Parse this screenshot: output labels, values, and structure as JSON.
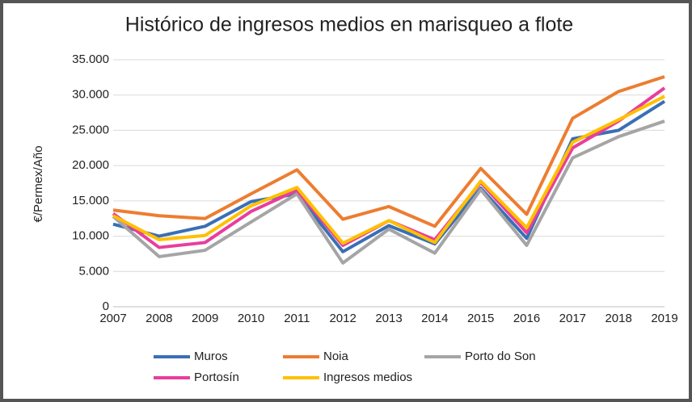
{
  "chart_data": {
    "type": "line",
    "title": "Histórico de ingresos medios en marisqueo a flote",
    "y_label": "€/Permex/Año",
    "categories": [
      "2007",
      "2008",
      "2009",
      "2010",
      "2011",
      "2012",
      "2013",
      "2014",
      "2015",
      "2016",
      "2017",
      "2018",
      "2019"
    ],
    "series": [
      {
        "name": "Muros",
        "color": "#3a6fb5",
        "values": [
          11700,
          10000,
          11400,
          14900,
          16000,
          7800,
          11500,
          8900,
          16800,
          9700,
          23800,
          25000,
          29100
        ]
      },
      {
        "name": "Noia",
        "color": "#ed7d31",
        "values": [
          13700,
          12900,
          12500,
          16000,
          19400,
          12400,
          14200,
          11400,
          19600,
          13100,
          26700,
          30500,
          32600
        ]
      },
      {
        "name": "Porto do Son",
        "color": "#a5a5a5",
        "values": [
          12800,
          7100,
          8000,
          12000,
          16000,
          6200,
          11000,
          7600,
          16600,
          8700,
          21100,
          24100,
          26300
        ]
      },
      {
        "name": "Portosín",
        "color": "#e83e9c",
        "values": [
          13200,
          8400,
          9100,
          13500,
          16500,
          8700,
          12200,
          9500,
          17600,
          10500,
          22500,
          26300,
          31000
        ]
      },
      {
        "name": "Ingresos medios",
        "color": "#ffc000",
        "values": [
          12900,
          9500,
          10100,
          14300,
          16900,
          9000,
          12200,
          9100,
          17800,
          11200,
          23300,
          26500,
          29800
        ]
      }
    ],
    "ylim": [
      0,
      35000
    ],
    "yticks": [
      0,
      {
        "value": 5000,
        "label": "5.000"
      },
      {
        "value": 10000,
        "label": "10.000"
      },
      {
        "value": 15000,
        "label": "15.000"
      },
      {
        "value": 20000,
        "label": "20.000"
      },
      {
        "value": 25000,
        "label": "25.000"
      },
      {
        "value": 30000,
        "label": "30.000"
      },
      {
        "value": 35000,
        "label": "35.000"
      }
    ],
    "grid": true,
    "legend": "bottom"
  }
}
